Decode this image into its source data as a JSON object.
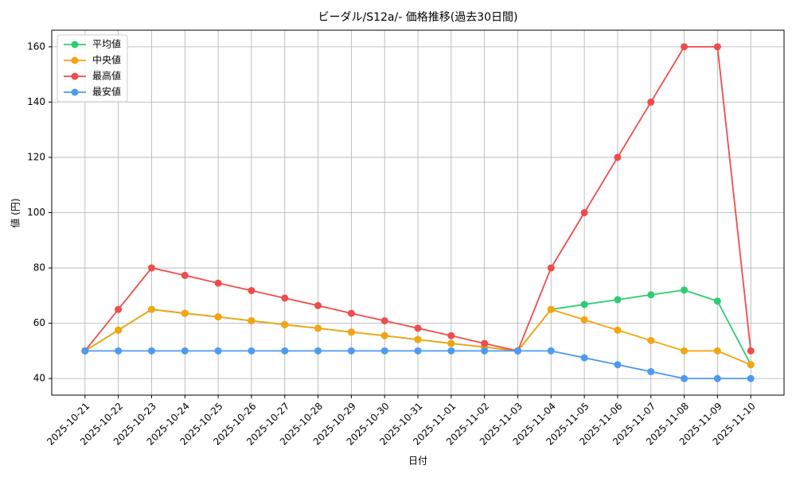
{
  "chart_data": {
    "type": "line",
    "title": "ビーダル/S12a/- 価格推移(過去30日間)",
    "x_label": "日付",
    "y_label": "値 (円)",
    "categories": [
      "2025-10-21",
      "2025-10-22",
      "2025-10-23",
      "2025-10-24",
      "2025-10-25",
      "2025-10-26",
      "2025-10-27",
      "2025-10-28",
      "2025-10-29",
      "2025-10-30",
      "2025-10-31",
      "2025-11-01",
      "2025-11-02",
      "2025-11-03",
      "2025-11-04",
      "2025-11-05",
      "2025-11-06",
      "2025-11-07",
      "2025-11-08",
      "2025-11-09",
      "2025-11-10"
    ],
    "series": [
      {
        "name": "平均値",
        "color": "#2ecc71",
        "values": [
          50,
          57.5,
          65,
          63.6,
          62.3,
          60.9,
          59.5,
          58.2,
          56.8,
          55.5,
          54.1,
          52.7,
          51.4,
          50,
          65,
          66.8,
          68.5,
          70.3,
          72,
          68,
          45
        ]
      },
      {
        "name": "中央値",
        "color": "#f5a30f",
        "values": [
          50,
          57.5,
          65,
          63.6,
          62.3,
          60.9,
          59.5,
          58.2,
          56.8,
          55.5,
          54.1,
          52.7,
          51.4,
          50,
          65,
          61.25,
          57.5,
          53.75,
          50,
          50,
          45
        ]
      },
      {
        "name": "最高値",
        "color": "#ef4c4c",
        "values": [
          50,
          65,
          80,
          77.3,
          74.5,
          71.8,
          69.1,
          66.4,
          63.6,
          60.9,
          58.2,
          55.5,
          52.7,
          50,
          80,
          100,
          120,
          140,
          160,
          160,
          50
        ]
      },
      {
        "name": "最安値",
        "color": "#4d9af0",
        "values": [
          50,
          50,
          50,
          50,
          50,
          50,
          50,
          50,
          50,
          50,
          50,
          50,
          50,
          50,
          50,
          47.5,
          45,
          42.5,
          40,
          40,
          40
        ]
      }
    ],
    "ylim": [
      34,
      166
    ],
    "yticks": [
      40,
      60,
      80,
      100,
      120,
      140,
      160
    ],
    "grid": true,
    "legend": "upper-left"
  }
}
